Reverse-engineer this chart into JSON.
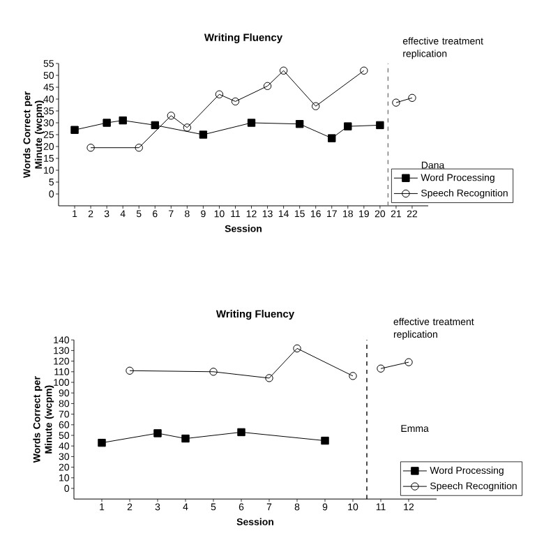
{
  "chart_data": [
    {
      "type": "line",
      "title": "Writing Fluency",
      "xlabel": "Session",
      "ylabel": "Words Correct per Minute (wcpm)",
      "xlim": [
        0,
        23
      ],
      "xticks": [
        1,
        2,
        3,
        4,
        5,
        6,
        7,
        8,
        9,
        10,
        11,
        12,
        13,
        14,
        15,
        16,
        17,
        18,
        19,
        20,
        21,
        22
      ],
      "ylim": [
        -5,
        55
      ],
      "yticks": [
        0,
        5,
        10,
        15,
        20,
        25,
        30,
        35,
        40,
        45,
        50,
        55
      ],
      "legend": "bottom right",
      "grid": false,
      "line_style": "solid",
      "ref_lines": [
        {
          "axis": "x",
          "value": 20.5,
          "line_style": "dashed",
          "color": "#777777"
        }
      ],
      "annotations": [
        "effective treatment replication",
        "Dana"
      ],
      "series": [
        {
          "name": "Word Processing",
          "color": "#000000",
          "marker": "square",
          "x": [
            1,
            3,
            4,
            6,
            9,
            12,
            15,
            17,
            18,
            20
          ],
          "values": [
            27,
            30,
            31,
            29,
            25,
            30,
            29.5,
            23.5,
            28.5,
            29
          ]
        },
        {
          "name": "Speech Recognition",
          "color": "#000000",
          "marker": "circle",
          "x": [
            2,
            5,
            7,
            8,
            10,
            11,
            13,
            14,
            16,
            19,
            20,
            21,
            22
          ],
          "values": [
            19.5,
            19.5,
            33,
            28,
            42,
            39,
            45.5,
            52,
            37,
            52,
            null,
            38.5,
            40.5
          ]
        }
      ]
    },
    {
      "type": "line",
      "title": "Writing Fluency",
      "xlabel": "Session",
      "ylabel": "Words Correct per Minute (wcpm)",
      "xlim": [
        0,
        13
      ],
      "xticks": [
        1,
        2,
        3,
        4,
        5,
        6,
        7,
        8,
        9,
        10,
        11,
        12
      ],
      "ylim": [
        -10,
        140
      ],
      "yticks": [
        0,
        10,
        20,
        30,
        40,
        50,
        60,
        70,
        80,
        90,
        100,
        110,
        120,
        130,
        140
      ],
      "legend": "bottom right",
      "grid": false,
      "line_style": "solid",
      "ref_lines": [
        {
          "axis": "x",
          "value": 10.5,
          "line_style": "dashed",
          "color": "#000000"
        }
      ],
      "annotations": [
        "effective treatment replication",
        "Emma"
      ],
      "series": [
        {
          "name": "Word Processing",
          "color": "#000000",
          "marker": "square",
          "x": [
            1,
            3,
            4,
            6,
            9
          ],
          "values": [
            43,
            52,
            47,
            53,
            45
          ]
        },
        {
          "name": "Speech Recognition",
          "color": "#000000",
          "marker": "circle",
          "x": [
            2,
            5,
            7,
            8,
            10,
            10.5,
            11,
            12
          ],
          "values": [
            111,
            110,
            104,
            132,
            106,
            null,
            113,
            119
          ]
        }
      ]
    }
  ]
}
